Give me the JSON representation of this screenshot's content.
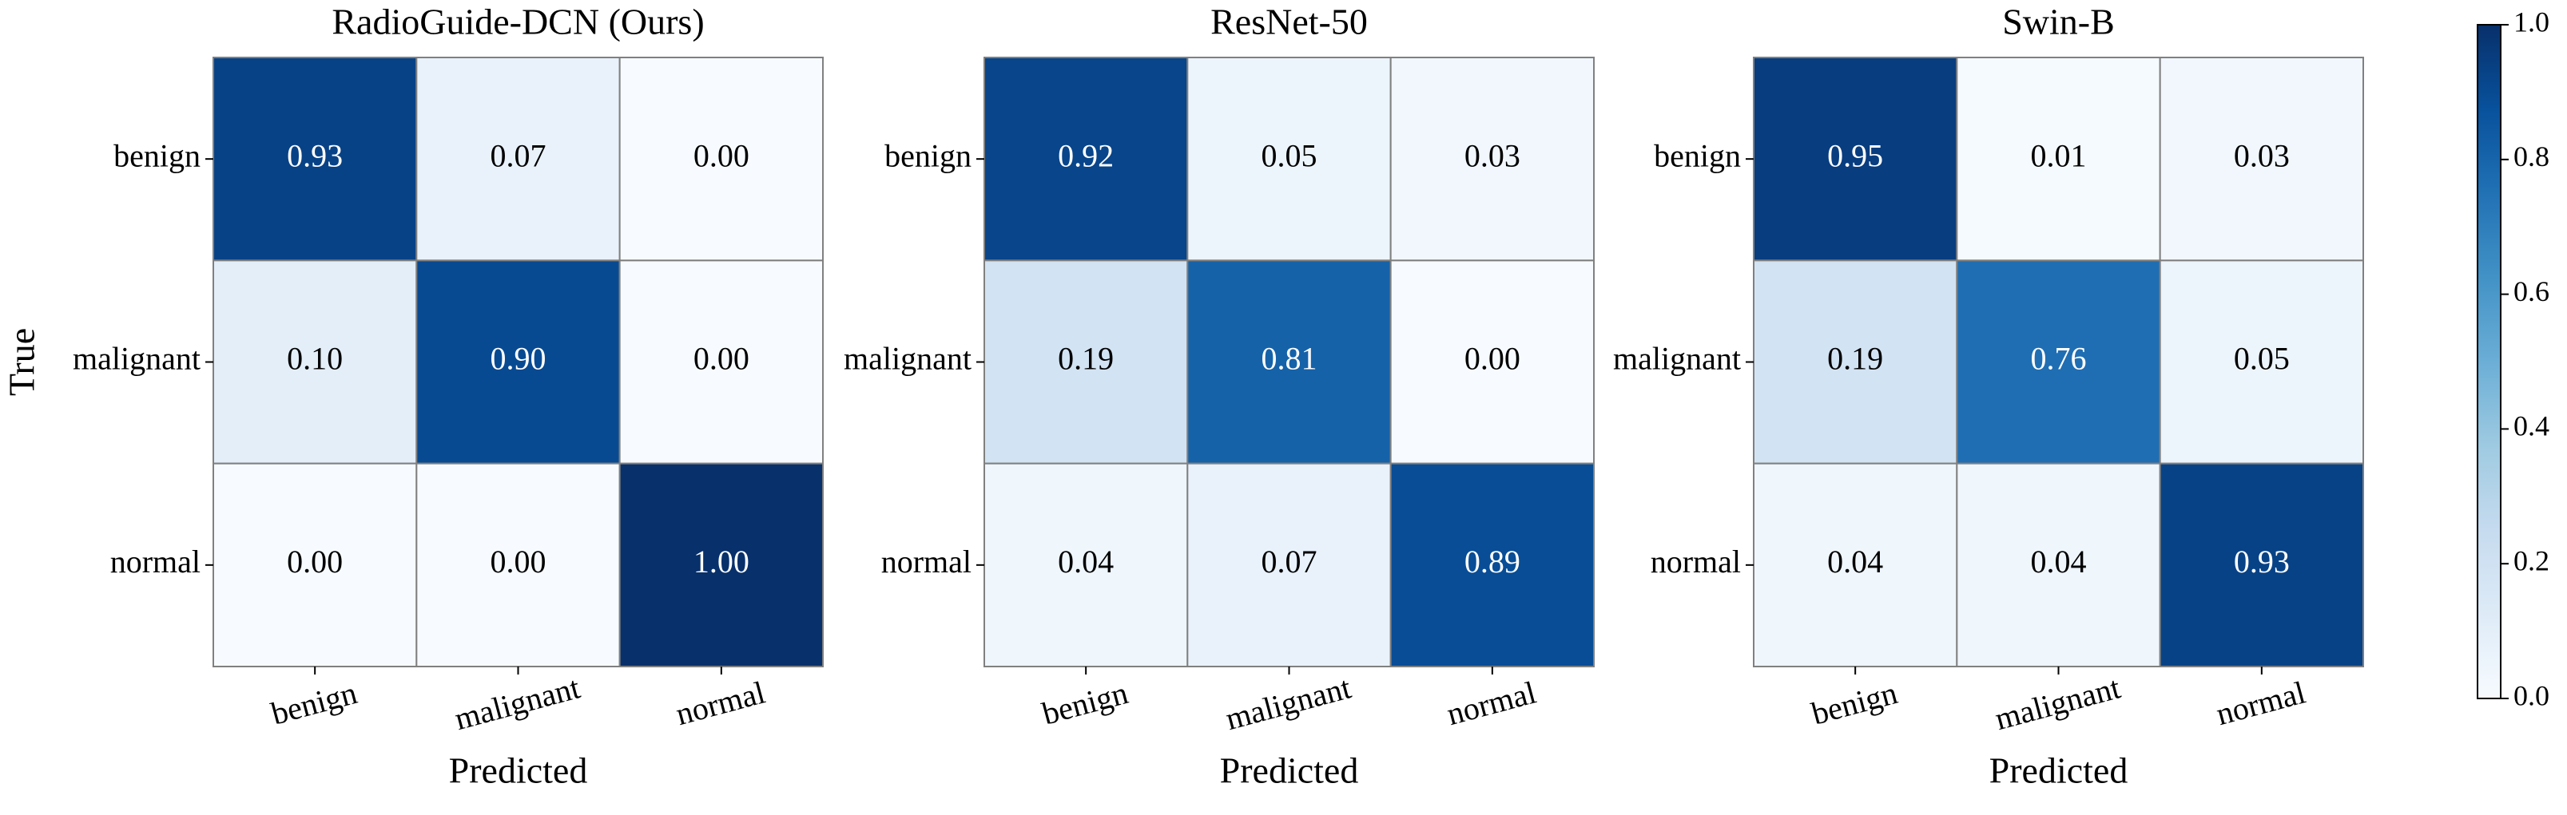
{
  "chart_data": [
    {
      "type": "heatmap",
      "title": "RadioGuide-DCN (Ours)",
      "xlabel": "Predicted",
      "ylabel": "True",
      "x_categories": [
        "benign",
        "malignant",
        "normal"
      ],
      "y_categories": [
        "benign",
        "malignant",
        "normal"
      ],
      "values": [
        [
          0.93,
          0.07,
          0.0
        ],
        [
          0.1,
          0.9,
          0.0
        ],
        [
          0.0,
          0.0,
          1.0
        ]
      ],
      "value_labels": [
        [
          "0.93",
          "0.07",
          "0.00"
        ],
        [
          "0.10",
          "0.90",
          "0.00"
        ],
        [
          "0.00",
          "0.00",
          "1.00"
        ]
      ]
    },
    {
      "type": "heatmap",
      "title": "ResNet-50",
      "xlabel": "Predicted",
      "x_categories": [
        "benign",
        "malignant",
        "normal"
      ],
      "y_categories": [
        "benign",
        "malignant",
        "normal"
      ],
      "values": [
        [
          0.92,
          0.05,
          0.03
        ],
        [
          0.19,
          0.81,
          0.0
        ],
        [
          0.04,
          0.07,
          0.89
        ]
      ],
      "value_labels": [
        [
          "0.92",
          "0.05",
          "0.03"
        ],
        [
          "0.19",
          "0.81",
          "0.00"
        ],
        [
          "0.04",
          "0.07",
          "0.89"
        ]
      ]
    },
    {
      "type": "heatmap",
      "title": "Swin-B",
      "xlabel": "Predicted",
      "x_categories": [
        "benign",
        "malignant",
        "normal"
      ],
      "y_categories": [
        "benign",
        "malignant",
        "normal"
      ],
      "values": [
        [
          0.95,
          0.01,
          0.03
        ],
        [
          0.19,
          0.76,
          0.05
        ],
        [
          0.04,
          0.04,
          0.93
        ]
      ],
      "value_labels": [
        [
          "0.95",
          "0.01",
          "0.03"
        ],
        [
          "0.19",
          "0.76",
          "0.05"
        ],
        [
          "0.04",
          "0.04",
          "0.93"
        ]
      ]
    }
  ],
  "colorbar": {
    "colormap": "Blues",
    "lim": [
      0,
      1
    ],
    "ticks": [
      {
        "value": 0,
        "label": "0.0"
      },
      {
        "value": 0.2,
        "label": "0.2"
      },
      {
        "value": 0.4,
        "label": "0.4"
      },
      {
        "value": 0.6,
        "label": "0.6"
      },
      {
        "value": 0.8,
        "label": "0.8"
      },
      {
        "value": 1,
        "label": "1.0"
      }
    ]
  }
}
